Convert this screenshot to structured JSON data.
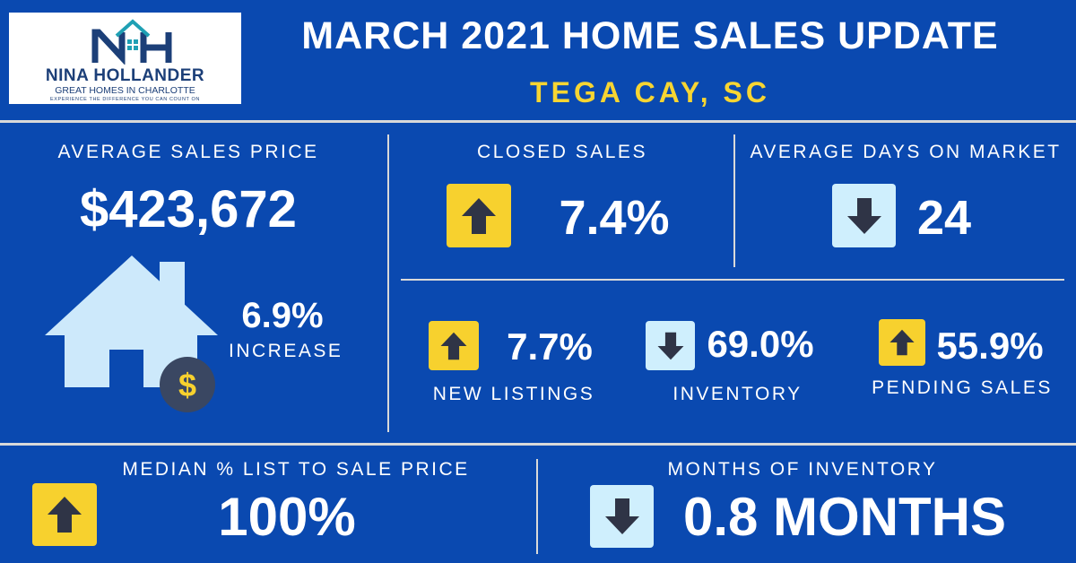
{
  "logo": {
    "name": "NINA HOLLANDER",
    "subtitle": "GREAT HOMES IN CHARLOTTE",
    "tagline": "EXPERIENCE THE DIFFERENCE YOU CAN COUNT ON"
  },
  "header": {
    "title": "MARCH 2021 HOME SALES UPDATE",
    "location": "TEGA CAY, SC"
  },
  "colors": {
    "background": "#0a49b0",
    "accent_yellow": "#f7d532",
    "up_arrow_box": "#f7d12e",
    "down_arrow_box": "#cfeffd",
    "house": "#cde9fb",
    "coin": "#3a4762"
  },
  "avg_sales_price": {
    "label": "AVERAGE SALES PRICE",
    "value": "$423,672",
    "change": "6.9%",
    "change_word": "INCREASE",
    "icon": "house-dollar-icon",
    "coin_symbol": "$"
  },
  "closed_sales": {
    "label": "CLOSED SALES",
    "value": "7.4%",
    "direction": "up"
  },
  "avg_days_on_market": {
    "label": "AVERAGE DAYS ON MARKET",
    "value": "24",
    "direction": "down"
  },
  "new_listings": {
    "label": "NEW LISTINGS",
    "value": "7.7%",
    "direction": "up"
  },
  "inventory": {
    "label": "INVENTORY",
    "value": "69.0%",
    "direction": "down"
  },
  "pending_sales": {
    "label": "PENDING SALES",
    "value": "55.9%",
    "direction": "up"
  },
  "median_list_to_sale": {
    "label": "MEDIAN % LIST TO SALE PRICE",
    "value": "100%",
    "direction": "up"
  },
  "months_of_inventory": {
    "label": "MONTHS OF INVENTORY",
    "value": "0.8 MONTHS",
    "direction": "down"
  }
}
